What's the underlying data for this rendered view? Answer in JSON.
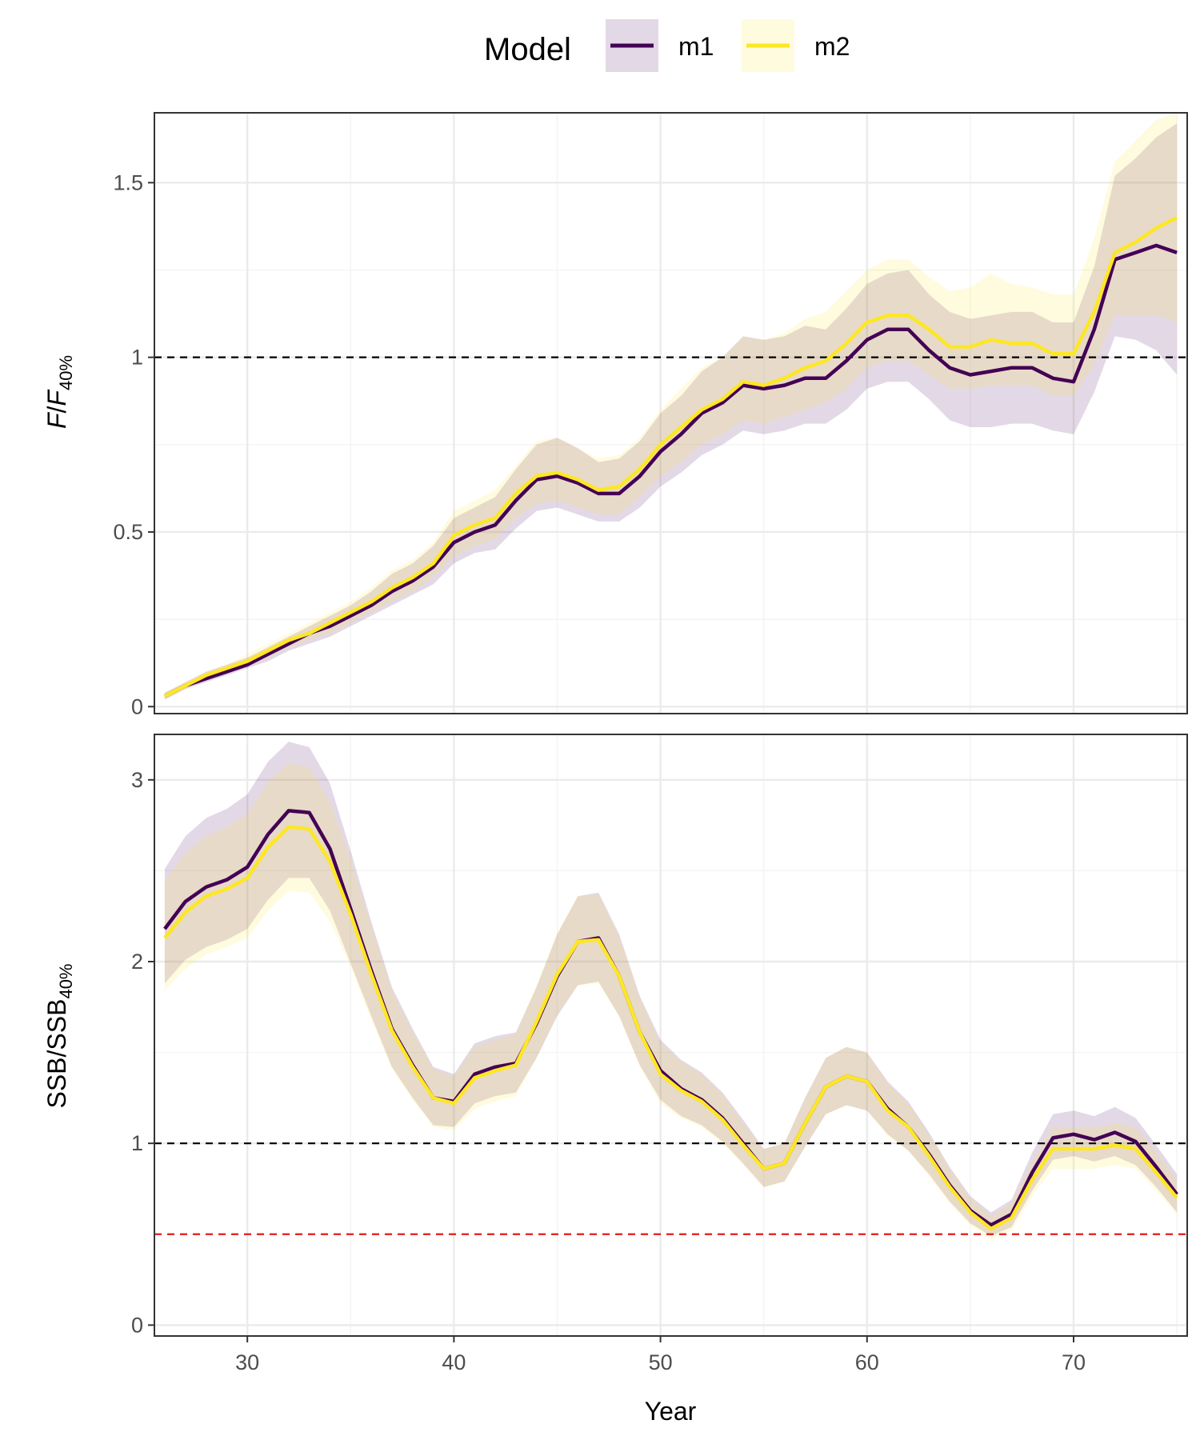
{
  "chart_data": {
    "type": "line",
    "xlabel": "Year",
    "legend": {
      "title": "Model",
      "placement": "top",
      "entries": [
        {
          "name": "m1",
          "color": "#440154"
        },
        {
          "name": "m2",
          "color": "#FDE725"
        }
      ]
    },
    "xlim": [
      25.5,
      75.5
    ],
    "xticks": [
      30,
      40,
      50,
      60,
      70
    ],
    "x": [
      26,
      27,
      28,
      29,
      30,
      31,
      32,
      33,
      34,
      35,
      36,
      37,
      38,
      39,
      40,
      41,
      42,
      43,
      44,
      45,
      46,
      47,
      48,
      49,
      50,
      51,
      52,
      53,
      54,
      55,
      56,
      57,
      58,
      59,
      60,
      61,
      62,
      63,
      64,
      65,
      66,
      67,
      68,
      69,
      70,
      71,
      72,
      73,
      74,
      75
    ],
    "panels": [
      {
        "ylabel_main": "F",
        "ylabel_slash": "/",
        "ylabel_denom": "F",
        "ylabel_sub": "40%",
        "ylim": [
          -0.02,
          1.7
        ],
        "yticks": [
          0,
          0.5,
          1,
          1.5
        ],
        "ytick_labels": [
          "0",
          "0.5",
          "1",
          "1.5"
        ],
        "reference_lines": [
          {
            "y": 1.0,
            "color": "#000000"
          }
        ],
        "series": [
          {
            "name": "m1",
            "values": [
              0.03,
              0.06,
              0.08,
              0.1,
              0.12,
              0.15,
              0.18,
              0.21,
              0.23,
              0.26,
              0.29,
              0.33,
              0.36,
              0.4,
              0.47,
              0.5,
              0.52,
              0.59,
              0.65,
              0.66,
              0.64,
              0.61,
              0.61,
              0.66,
              0.73,
              0.78,
              0.84,
              0.87,
              0.92,
              0.91,
              0.92,
              0.94,
              0.94,
              0.99,
              1.05,
              1.08,
              1.08,
              1.02,
              0.97,
              0.95,
              0.96,
              0.97,
              0.97,
              0.94,
              0.93,
              1.08,
              1.28,
              1.3,
              1.32,
              1.3
            ],
            "lower": [
              0.02,
              0.05,
              0.07,
              0.09,
              0.11,
              0.13,
              0.16,
              0.18,
              0.2,
              0.23,
              0.26,
              0.29,
              0.32,
              0.35,
              0.41,
              0.44,
              0.45,
              0.51,
              0.56,
              0.57,
              0.55,
              0.53,
              0.53,
              0.57,
              0.63,
              0.67,
              0.72,
              0.75,
              0.79,
              0.78,
              0.79,
              0.81,
              0.81,
              0.85,
              0.91,
              0.93,
              0.93,
              0.88,
              0.82,
              0.8,
              0.8,
              0.81,
              0.81,
              0.79,
              0.78,
              0.9,
              1.06,
              1.05,
              1.02,
              0.95
            ],
            "upper": [
              0.04,
              0.07,
              0.1,
              0.12,
              0.14,
              0.17,
              0.2,
              0.23,
              0.26,
              0.29,
              0.33,
              0.38,
              0.41,
              0.46,
              0.54,
              0.57,
              0.6,
              0.68,
              0.75,
              0.77,
              0.74,
              0.7,
              0.71,
              0.76,
              0.84,
              0.89,
              0.96,
              1.0,
              1.06,
              1.05,
              1.06,
              1.09,
              1.08,
              1.14,
              1.21,
              1.24,
              1.25,
              1.18,
              1.13,
              1.11,
              1.12,
              1.13,
              1.13,
              1.1,
              1.1,
              1.26,
              1.52,
              1.57,
              1.63,
              1.67
            ]
          },
          {
            "name": "m2",
            "values": [
              0.03,
              0.06,
              0.09,
              0.11,
              0.13,
              0.16,
              0.19,
              0.21,
              0.24,
              0.27,
              0.3,
              0.34,
              0.37,
              0.41,
              0.49,
              0.52,
              0.54,
              0.61,
              0.66,
              0.67,
              0.65,
              0.62,
              0.63,
              0.68,
              0.75,
              0.8,
              0.85,
              0.88,
              0.93,
              0.92,
              0.94,
              0.97,
              0.99,
              1.04,
              1.1,
              1.12,
              1.12,
              1.08,
              1.03,
              1.03,
              1.05,
              1.04,
              1.04,
              1.01,
              1.01,
              1.13,
              1.3,
              1.33,
              1.37,
              1.4
            ],
            "lower": [
              0.02,
              0.05,
              0.08,
              0.1,
              0.12,
              0.14,
              0.17,
              0.19,
              0.21,
              0.24,
              0.27,
              0.3,
              0.33,
              0.37,
              0.43,
              0.46,
              0.48,
              0.54,
              0.58,
              0.59,
              0.57,
              0.55,
              0.55,
              0.6,
              0.66,
              0.7,
              0.75,
              0.78,
              0.82,
              0.81,
              0.83,
              0.85,
              0.87,
              0.91,
              0.97,
              0.99,
              0.99,
              0.95,
              0.91,
              0.91,
              0.92,
              0.92,
              0.92,
              0.89,
              0.89,
              0.98,
              1.12,
              1.12,
              1.12,
              1.1
            ],
            "upper": [
              0.04,
              0.07,
              0.1,
              0.12,
              0.15,
              0.18,
              0.21,
              0.24,
              0.27,
              0.3,
              0.34,
              0.39,
              0.42,
              0.47,
              0.56,
              0.59,
              0.62,
              0.69,
              0.76,
              0.77,
              0.74,
              0.71,
              0.72,
              0.77,
              0.85,
              0.91,
              0.97,
              1.0,
              1.06,
              1.05,
              1.07,
              1.11,
              1.13,
              1.19,
              1.25,
              1.28,
              1.28,
              1.23,
              1.19,
              1.2,
              1.24,
              1.21,
              1.2,
              1.18,
              1.18,
              1.34,
              1.56,
              1.62,
              1.68,
              1.7
            ]
          }
        ]
      },
      {
        "ylabel_main": "SSB",
        "ylabel_slash": "/",
        "ylabel_denom": "SSB",
        "ylabel_sub": "40%",
        "ylim": [
          -0.06,
          3.25
        ],
        "yticks": [
          0,
          1,
          2,
          3
        ],
        "ytick_labels": [
          "0",
          "1",
          "2",
          "3"
        ],
        "reference_lines": [
          {
            "y": 1.0,
            "color": "#000000"
          },
          {
            "y": 0.5,
            "color": "#e41a1c"
          }
        ],
        "series": [
          {
            "name": "m1",
            "values": [
              2.18,
              2.33,
              2.41,
              2.45,
              2.52,
              2.7,
              2.83,
              2.82,
              2.62,
              2.29,
              1.95,
              1.63,
              1.43,
              1.25,
              1.23,
              1.38,
              1.42,
              1.44,
              1.66,
              1.92,
              2.11,
              2.13,
              1.92,
              1.61,
              1.4,
              1.3,
              1.24,
              1.14,
              1.0,
              0.86,
              0.89,
              1.11,
              1.31,
              1.37,
              1.34,
              1.19,
              1.09,
              0.94,
              0.77,
              0.63,
              0.55,
              0.61,
              0.84,
              1.03,
              1.05,
              1.02,
              1.06,
              1.01,
              0.87,
              0.72
            ],
            "lower": [
              1.88,
              2.01,
              2.08,
              2.12,
              2.18,
              2.34,
              2.46,
              2.46,
              2.28,
              1.99,
              1.7,
              1.42,
              1.25,
              1.1,
              1.09,
              1.22,
              1.26,
              1.28,
              1.47,
              1.7,
              1.87,
              1.89,
              1.7,
              1.43,
              1.24,
              1.15,
              1.1,
              1.01,
              0.89,
              0.76,
              0.79,
              0.98,
              1.16,
              1.21,
              1.18,
              1.05,
              0.96,
              0.83,
              0.68,
              0.56,
              0.49,
              0.54,
              0.74,
              0.91,
              0.93,
              0.9,
              0.93,
              0.88,
              0.76,
              0.62
            ],
            "upper": [
              2.51,
              2.69,
              2.79,
              2.84,
              2.92,
              3.1,
              3.21,
              3.18,
              2.98,
              2.61,
              2.22,
              1.86,
              1.63,
              1.42,
              1.38,
              1.55,
              1.59,
              1.61,
              1.86,
              2.15,
              2.36,
              2.38,
              2.15,
              1.81,
              1.57,
              1.46,
              1.39,
              1.28,
              1.13,
              0.97,
              1.0,
              1.25,
              1.47,
              1.53,
              1.5,
              1.34,
              1.23,
              1.06,
              0.87,
              0.71,
              0.62,
              0.69,
              0.95,
              1.16,
              1.18,
              1.15,
              1.2,
              1.14,
              0.99,
              0.83
            ]
          },
          {
            "name": "m2",
            "values": [
              2.13,
              2.27,
              2.36,
              2.4,
              2.46,
              2.63,
              2.74,
              2.73,
              2.55,
              2.26,
              1.93,
              1.62,
              1.42,
              1.25,
              1.22,
              1.36,
              1.4,
              1.43,
              1.67,
              1.93,
              2.11,
              2.12,
              1.92,
              1.61,
              1.38,
              1.29,
              1.23,
              1.13,
              0.99,
              0.86,
              0.89,
              1.11,
              1.31,
              1.37,
              1.34,
              1.18,
              1.09,
              0.93,
              0.76,
              0.62,
              0.53,
              0.59,
              0.8,
              0.97,
              0.97,
              0.97,
              0.99,
              0.97,
              0.84,
              0.7
            ],
            "lower": [
              1.84,
              1.96,
              2.04,
              2.08,
              2.13,
              2.28,
              2.39,
              2.38,
              2.22,
              1.97,
              1.68,
              1.41,
              1.24,
              1.09,
              1.07,
              1.19,
              1.23,
              1.26,
              1.47,
              1.71,
              1.87,
              1.88,
              1.7,
              1.42,
              1.22,
              1.14,
              1.09,
              1.0,
              0.88,
              0.76,
              0.79,
              0.98,
              1.16,
              1.21,
              1.18,
              1.04,
              0.96,
              0.82,
              0.67,
              0.55,
              0.47,
              0.52,
              0.71,
              0.86,
              0.86,
              0.86,
              0.88,
              0.86,
              0.74,
              0.61
            ],
            "upper": [
              2.44,
              2.6,
              2.69,
              2.74,
              2.81,
              2.99,
              3.09,
              3.07,
              2.88,
              2.56,
              2.19,
              1.84,
              1.61,
              1.41,
              1.37,
              1.53,
              1.57,
              1.6,
              1.87,
              2.16,
              2.36,
              2.37,
              2.14,
              1.8,
              1.55,
              1.45,
              1.38,
              1.27,
              1.11,
              0.97,
              1.0,
              1.25,
              1.47,
              1.53,
              1.5,
              1.33,
              1.22,
              1.05,
              0.86,
              0.7,
              0.6,
              0.67,
              0.9,
              1.09,
              1.09,
              1.09,
              1.11,
              1.09,
              0.95,
              0.8
            ]
          }
        ]
      }
    ]
  }
}
